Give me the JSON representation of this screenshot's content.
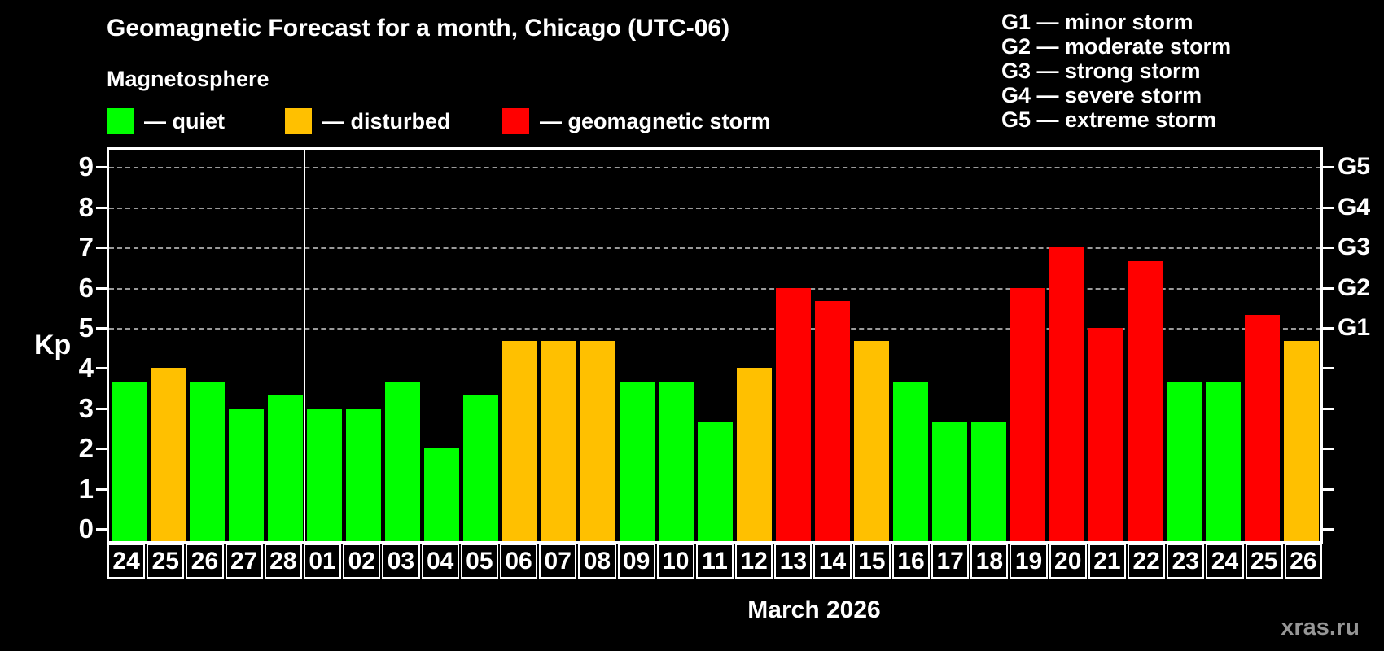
{
  "title": "Geomagnetic Forecast for a month, Chicago (UTC-06)",
  "subtitle": "Magnetosphere",
  "legend": {
    "items": [
      {
        "label": "— quiet",
        "status": "quiet",
        "color": "#00ff00"
      },
      {
        "label": "— disturbed",
        "status": "disturbed",
        "color": "#ffc000"
      },
      {
        "label": "— geomagnetic storm",
        "status": "storm",
        "color": "#ff0000"
      }
    ]
  },
  "g_scale": {
    "items": [
      "G1 — minor storm",
      "G2 — moderate storm",
      "G3 — strong storm",
      "G4 — severe storm",
      "G5 — extreme storm"
    ]
  },
  "axis": {
    "y_label": "Kp",
    "kp_ticks": [
      0,
      1,
      2,
      3,
      4,
      5,
      6,
      7,
      8,
      9
    ],
    "g_labels": [
      {
        "kp": 5,
        "label": "G1"
      },
      {
        "kp": 6,
        "label": "G2"
      },
      {
        "kp": 7,
        "label": "G3"
      },
      {
        "kp": 8,
        "label": "G4"
      },
      {
        "kp": 9,
        "label": "G5"
      }
    ],
    "gridlines_kp": [
      5,
      6,
      7,
      8,
      9
    ]
  },
  "footer": {
    "month_label": "March 2026",
    "watermark": "xras.ru"
  },
  "chart_data": {
    "type": "bar",
    "title": "Geomagnetic Forecast for a month, Chicago (UTC-06)",
    "ylabel": "Kp",
    "ylim": [
      0,
      9.5
    ],
    "grid": "dashed horizontal at Kp 5-9",
    "legend_position": "top-left",
    "month_boundary_after_index": 4,
    "categories": [
      "24",
      "25",
      "26",
      "27",
      "28",
      "01",
      "02",
      "03",
      "04",
      "05",
      "06",
      "07",
      "08",
      "09",
      "10",
      "11",
      "12",
      "13",
      "14",
      "15",
      "16",
      "17",
      "18",
      "19",
      "20",
      "21",
      "22",
      "23",
      "24",
      "25",
      "26"
    ],
    "values": [
      3.67,
      4,
      3.67,
      3,
      3.33,
      3,
      3,
      3.67,
      2,
      3.33,
      4.67,
      4.67,
      4.67,
      3.67,
      3.67,
      2.67,
      4,
      6,
      5.67,
      4.67,
      3.67,
      2.67,
      2.67,
      6,
      7,
      5,
      6.67,
      3.67,
      3.67,
      5.33,
      4.67
    ],
    "statuses": [
      "quiet",
      "disturbed",
      "quiet",
      "quiet",
      "quiet",
      "quiet",
      "quiet",
      "quiet",
      "quiet",
      "quiet",
      "disturbed",
      "disturbed",
      "disturbed",
      "quiet",
      "quiet",
      "quiet",
      "disturbed",
      "storm",
      "storm",
      "disturbed",
      "quiet",
      "quiet",
      "quiet",
      "storm",
      "storm",
      "storm",
      "storm",
      "quiet",
      "quiet",
      "storm",
      "disturbed"
    ],
    "status_colors": {
      "quiet": "#00ff00",
      "disturbed": "#ffc000",
      "storm": "#ff0000"
    }
  }
}
